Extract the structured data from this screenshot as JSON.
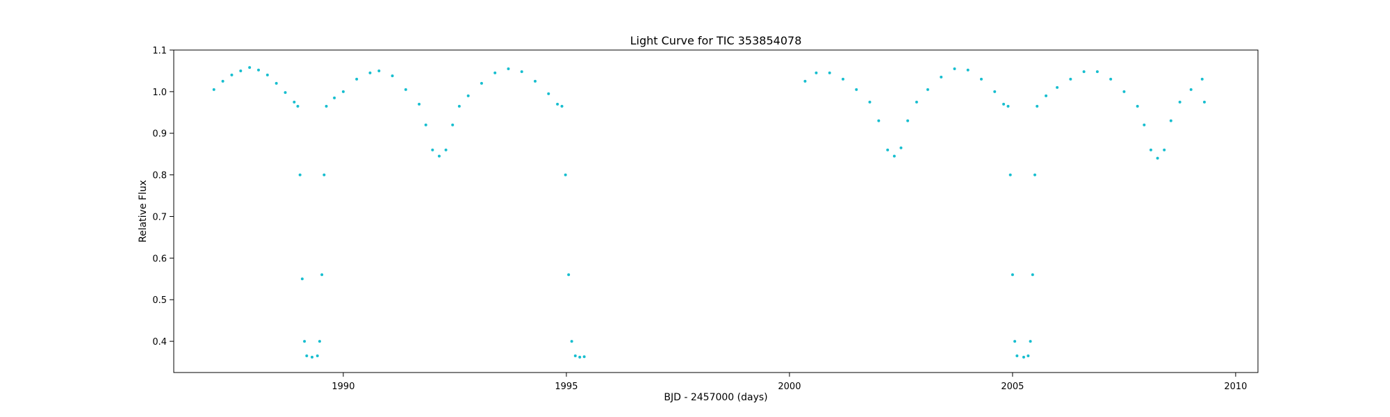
{
  "chart_data": {
    "type": "scatter",
    "title": "Light Curve for TIC 353854078",
    "xlabel": "BJD - 2457000 (days)",
    "ylabel": "Relative Flux",
    "xlim": [
      1986.2,
      2010.5
    ],
    "ylim": [
      0.325,
      1.1
    ],
    "xticks": [
      1990,
      1995,
      2000,
      2005,
      2010
    ],
    "yticks": [
      0.4,
      0.5,
      0.6,
      0.7,
      0.8,
      0.9,
      1.0,
      1.1
    ],
    "grid": false,
    "legend": "none",
    "color": "#17becf",
    "series": [
      {
        "values": [
          [
            1987.1,
            1.005
          ],
          [
            1987.3,
            1.025
          ],
          [
            1987.5,
            1.04
          ],
          [
            1987.7,
            1.05
          ],
          [
            1987.9,
            1.058
          ],
          [
            1988.1,
            1.052
          ],
          [
            1988.3,
            1.04
          ],
          [
            1988.5,
            1.02
          ],
          [
            1988.7,
            0.998
          ],
          [
            1988.9,
            0.975
          ],
          [
            1988.98,
            0.965
          ],
          [
            1989.03,
            0.8
          ],
          [
            1989.08,
            0.55
          ],
          [
            1989.13,
            0.4
          ],
          [
            1989.18,
            0.365
          ],
          [
            1989.3,
            0.362
          ],
          [
            1989.42,
            0.365
          ],
          [
            1989.47,
            0.4
          ],
          [
            1989.52,
            0.56
          ],
          [
            1989.57,
            0.8
          ],
          [
            1989.62,
            0.965
          ],
          [
            1989.8,
            0.985
          ],
          [
            1990.0,
            1.0
          ],
          [
            1990.3,
            1.03
          ],
          [
            1990.6,
            1.045
          ],
          [
            1990.8,
            1.05
          ],
          [
            1991.1,
            1.038
          ],
          [
            1991.4,
            1.005
          ],
          [
            1991.7,
            0.97
          ],
          [
            1991.85,
            0.92
          ],
          [
            1992.0,
            0.86
          ],
          [
            1992.15,
            0.845
          ],
          [
            1992.3,
            0.86
          ],
          [
            1992.45,
            0.92
          ],
          [
            1992.6,
            0.965
          ],
          [
            1992.8,
            0.99
          ],
          [
            1993.1,
            1.02
          ],
          [
            1993.4,
            1.045
          ],
          [
            1993.7,
            1.055
          ],
          [
            1994.0,
            1.048
          ],
          [
            1994.3,
            1.025
          ],
          [
            1994.6,
            0.995
          ],
          [
            1994.8,
            0.97
          ],
          [
            1994.9,
            0.965
          ],
          [
            1994.98,
            0.8
          ],
          [
            1995.05,
            0.56
          ],
          [
            1995.12,
            0.4
          ],
          [
            1995.2,
            0.365
          ],
          [
            1995.3,
            0.362
          ],
          [
            1995.4,
            0.363
          ],
          [
            2000.35,
            1.025
          ],
          [
            2000.6,
            1.045
          ],
          [
            2000.9,
            1.045
          ],
          [
            2001.2,
            1.03
          ],
          [
            2001.5,
            1.005
          ],
          [
            2001.8,
            0.975
          ],
          [
            2002.0,
            0.93
          ],
          [
            2002.2,
            0.86
          ],
          [
            2002.35,
            0.845
          ],
          [
            2002.5,
            0.865
          ],
          [
            2002.65,
            0.93
          ],
          [
            2002.85,
            0.975
          ],
          [
            2003.1,
            1.005
          ],
          [
            2003.4,
            1.035
          ],
          [
            2003.7,
            1.055
          ],
          [
            2004.0,
            1.052
          ],
          [
            2004.3,
            1.03
          ],
          [
            2004.6,
            1.0
          ],
          [
            2004.8,
            0.97
          ],
          [
            2004.9,
            0.965
          ],
          [
            2004.95,
            0.8
          ],
          [
            2005.0,
            0.56
          ],
          [
            2005.05,
            0.4
          ],
          [
            2005.1,
            0.365
          ],
          [
            2005.25,
            0.362
          ],
          [
            2005.35,
            0.365
          ],
          [
            2005.4,
            0.4
          ],
          [
            2005.45,
            0.56
          ],
          [
            2005.5,
            0.8
          ],
          [
            2005.55,
            0.965
          ],
          [
            2005.75,
            0.99
          ],
          [
            2006.0,
            1.01
          ],
          [
            2006.3,
            1.03
          ],
          [
            2006.6,
            1.048
          ],
          [
            2006.9,
            1.048
          ],
          [
            2007.2,
            1.03
          ],
          [
            2007.5,
            1.0
          ],
          [
            2007.8,
            0.965
          ],
          [
            2007.95,
            0.92
          ],
          [
            2008.1,
            0.86
          ],
          [
            2008.25,
            0.84
          ],
          [
            2008.4,
            0.86
          ],
          [
            2008.55,
            0.93
          ],
          [
            2008.75,
            0.975
          ],
          [
            2009.0,
            1.005
          ],
          [
            2009.25,
            1.03
          ],
          [
            2009.3,
            0.975
          ]
        ]
      }
    ]
  }
}
